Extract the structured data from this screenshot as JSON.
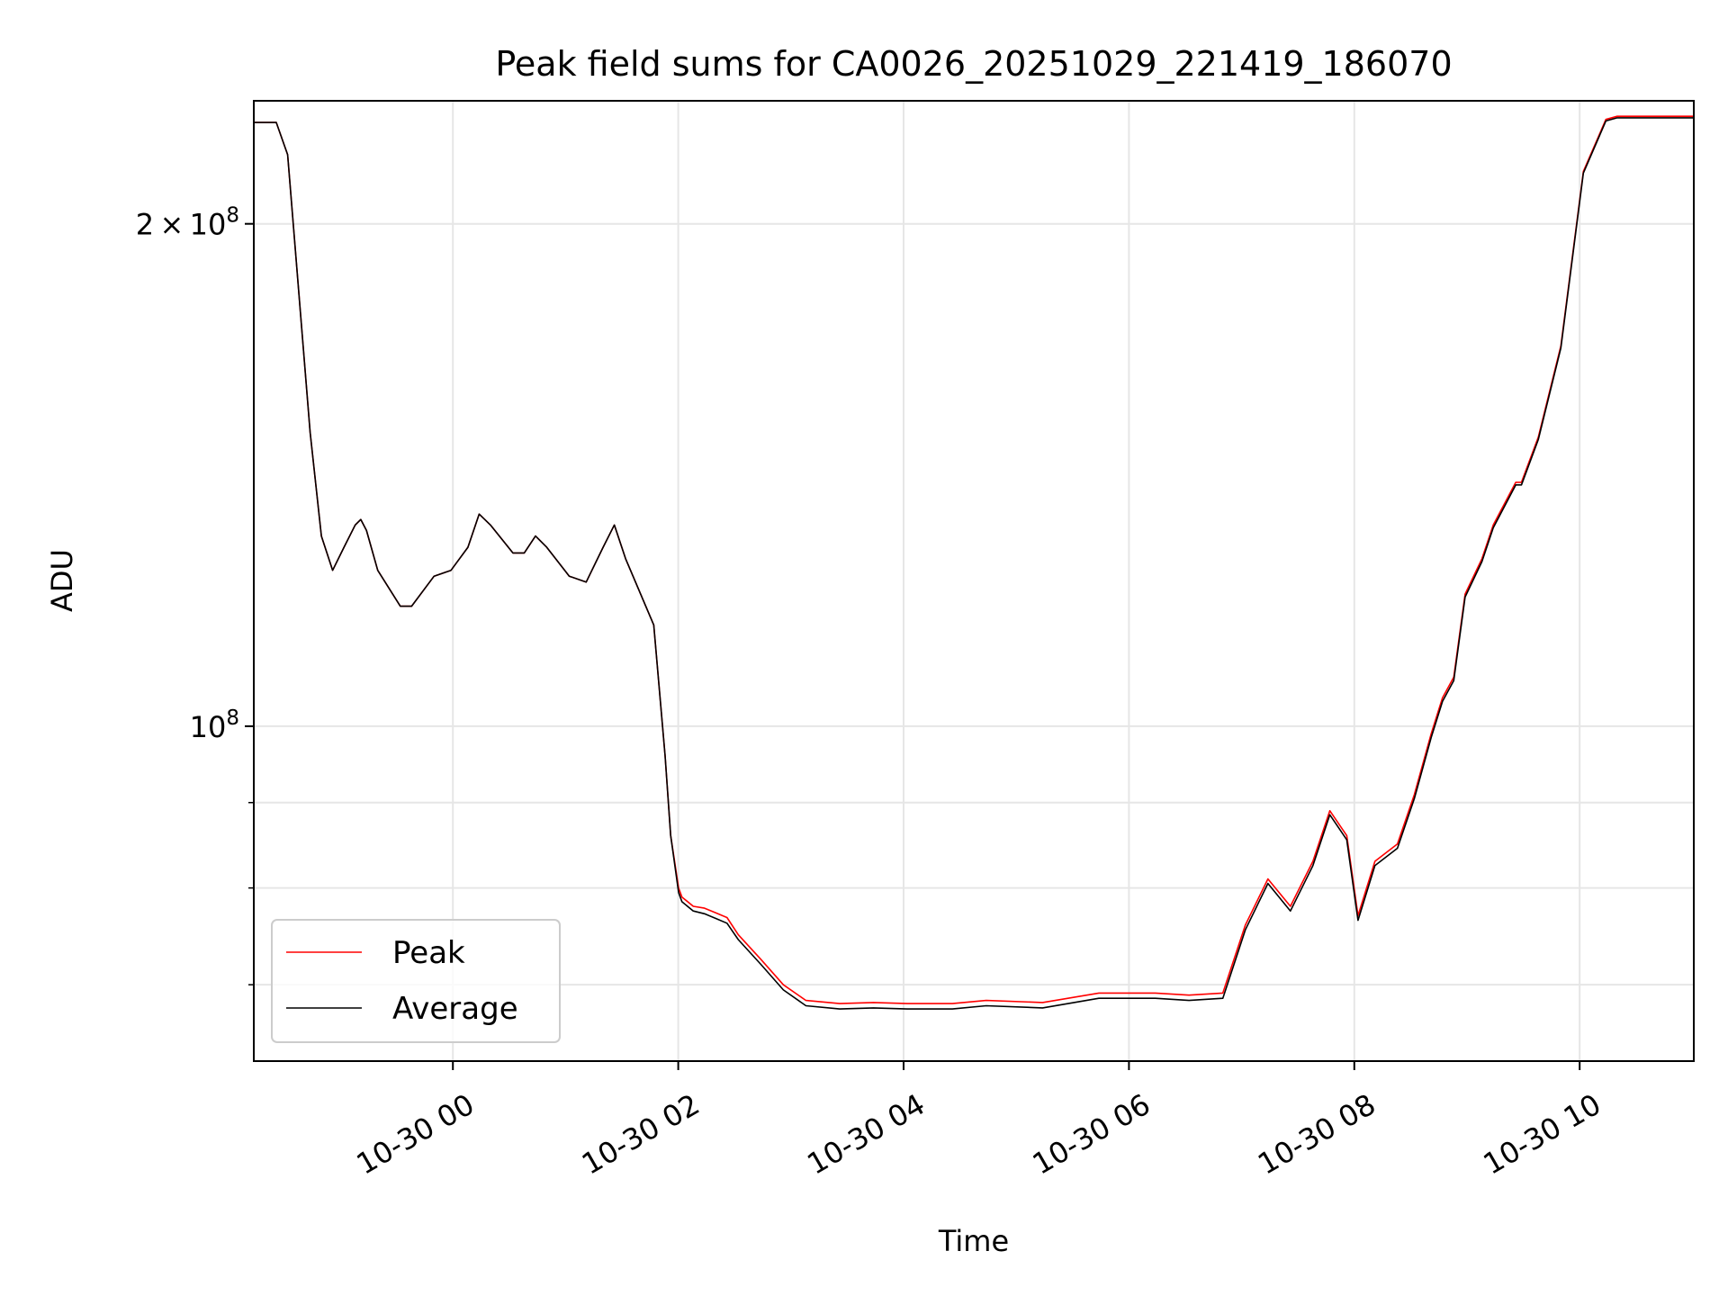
{
  "chart_data": {
    "type": "line",
    "title": "Peak field sums for CA0026_20251029_221419_186070",
    "xlabel": "Time",
    "ylabel": "ADU",
    "yscale": "log",
    "ylim": [
      63000000,
      237000000
    ],
    "xlim_hours_from_2025-10-29T22:14": [
      0,
      12.78
    ],
    "grid": true,
    "legend_position": "lower-left",
    "x_ticks": [
      {
        "label": "10-30 00",
        "hours": 1.767
      },
      {
        "label": "10-30 02",
        "hours": 3.767
      },
      {
        "label": "10-30 04",
        "hours": 5.767
      },
      {
        "label": "10-30 06",
        "hours": 7.767
      },
      {
        "label": "10-30 08",
        "hours": 9.767
      },
      {
        "label": "10-30 10",
        "hours": 11.767
      }
    ],
    "y_major_ticks": [
      {
        "base": "2",
        "times": "×",
        "power_base": "10",
        "exponent": "8",
        "value": 200000000
      },
      {
        "base": "",
        "times": "",
        "power_base": "10",
        "exponent": "8",
        "value": 100000000
      }
    ],
    "y_minor_ticks": [
      70000000,
      80000000,
      90000000
    ],
    "series": [
      {
        "name": "Peak",
        "color": "#ff0000",
        "x_hours": [
          0,
          0.2,
          0.3,
          0.5,
          0.6,
          0.7,
          0.8,
          0.9,
          0.95,
          1.0,
          1.1,
          1.3,
          1.4,
          1.6,
          1.75,
          1.9,
          2.0,
          2.1,
          2.3,
          2.4,
          2.5,
          2.6,
          2.8,
          2.95,
          3.1,
          3.2,
          3.3,
          3.55,
          3.65,
          3.7,
          3.77,
          3.8,
          3.9,
          4.0,
          4.1,
          4.2,
          4.3,
          4.5,
          4.7,
          4.9,
          5.2,
          5.5,
          5.8,
          6.2,
          6.5,
          7.0,
          7.5,
          8.0,
          8.3,
          8.6,
          8.8,
          9.0,
          9.2,
          9.4,
          9.55,
          9.7,
          9.8,
          9.95,
          10.15,
          10.3,
          10.45,
          10.55,
          10.65,
          10.75,
          10.9,
          11.0,
          11.2,
          11.25,
          11.4,
          11.6,
          11.8,
          12.0,
          12.1,
          12.25,
          12.35,
          12.55,
          12.65,
          12.78
        ],
        "values": [
          230000000,
          230000000,
          220000000,
          150000000,
          130000000,
          124000000,
          128000000,
          132000000,
          133000000,
          131000000,
          124000000,
          118000000,
          118000000,
          123000000,
          124000000,
          128000000,
          134000000,
          132000000,
          127000000,
          127000000,
          130000000,
          128000000,
          123000000,
          122000000,
          128000000,
          132000000,
          126000000,
          115000000,
          96000000,
          86000000,
          80000000,
          79000000,
          78000000,
          77800000,
          77300000,
          76800000,
          75000000,
          72500000,
          70000000,
          68500000,
          68200000,
          68300000,
          68200000,
          68200000,
          68500000,
          68300000,
          69200000,
          69200000,
          69000000,
          69200000,
          76000000,
          81000000,
          78000000,
          83000000,
          89000000,
          86000000,
          77000000,
          83000000,
          85000000,
          91000000,
          99000000,
          104000000,
          107000000,
          120000000,
          126000000,
          132000000,
          140000000,
          140000000,
          149000000,
          169000000,
          215000000,
          231000000,
          232000000,
          232000000,
          232000000,
          232000000,
          232000000,
          232000000
        ]
      },
      {
        "name": "Average",
        "color": "#000000",
        "x_hours": [
          0,
          0.2,
          0.3,
          0.5,
          0.6,
          0.7,
          0.8,
          0.9,
          0.95,
          1.0,
          1.1,
          1.3,
          1.4,
          1.6,
          1.75,
          1.9,
          2.0,
          2.1,
          2.3,
          2.4,
          2.5,
          2.6,
          2.8,
          2.95,
          3.1,
          3.2,
          3.3,
          3.55,
          3.65,
          3.7,
          3.77,
          3.8,
          3.9,
          4.0,
          4.1,
          4.2,
          4.3,
          4.5,
          4.7,
          4.9,
          5.2,
          5.5,
          5.8,
          6.2,
          6.5,
          7.0,
          7.5,
          8.0,
          8.3,
          8.6,
          8.8,
          9.0,
          9.2,
          9.4,
          9.55,
          9.7,
          9.8,
          9.95,
          10.15,
          10.3,
          10.45,
          10.55,
          10.65,
          10.75,
          10.9,
          11.0,
          11.2,
          11.25,
          11.4,
          11.6,
          11.8,
          12.0,
          12.1,
          12.25,
          12.35,
          12.55,
          12.65,
          12.78
        ],
        "values": [
          230000000,
          230000000,
          220000000,
          150000000,
          130000000,
          124000000,
          128000000,
          132000000,
          133000000,
          131000000,
          124000000,
          118000000,
          118000000,
          123000000,
          124000000,
          128000000,
          134000000,
          132000000,
          127000000,
          127000000,
          130000000,
          128000000,
          123000000,
          122000000,
          128000000,
          132000000,
          126000000,
          115000000,
          96000000,
          86000000,
          79500000,
          78500000,
          77500000,
          77200000,
          76700000,
          76200000,
          74500000,
          72000000,
          69500000,
          68000000,
          67700000,
          67800000,
          67700000,
          67700000,
          68000000,
          67800000,
          68700000,
          68700000,
          68500000,
          68700000,
          75500000,
          80500000,
          77500000,
          82500000,
          88500000,
          85500000,
          76500000,
          82500000,
          84500000,
          90500000,
          98500000,
          103500000,
          106500000,
          119500000,
          125500000,
          131500000,
          139500000,
          139500000,
          148500000,
          168500000,
          214500000,
          230500000,
          231500000,
          231500000,
          231500000,
          231500000,
          231500000,
          231500000
        ]
      }
    ]
  }
}
